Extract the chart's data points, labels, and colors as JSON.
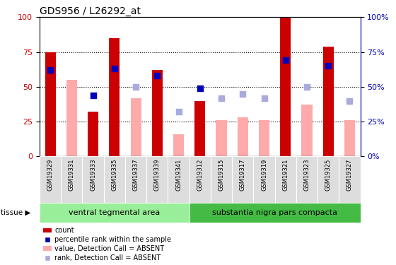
{
  "title": "GDS956 / L26292_at",
  "samples": [
    "GSM19329",
    "GSM19331",
    "GSM19333",
    "GSM19335",
    "GSM19337",
    "GSM19339",
    "GSM19341",
    "GSM19312",
    "GSM19315",
    "GSM19317",
    "GSM19319",
    "GSM19321",
    "GSM19323",
    "GSM19325",
    "GSM19327"
  ],
  "group1_count": 7,
  "group2_count": 8,
  "tissue_labels": [
    "ventral tegmental area",
    "substantia nigra pars compacta"
  ],
  "tissue_label": "tissue",
  "red_bars": [
    75,
    0,
    32,
    85,
    0,
    62,
    0,
    40,
    0,
    0,
    0,
    100,
    0,
    79,
    0
  ],
  "pink_bars": [
    0,
    55,
    0,
    0,
    42,
    0,
    16,
    0,
    26,
    28,
    26,
    0,
    37,
    0,
    26
  ],
  "blue_dots": [
    62,
    0,
    44,
    63,
    0,
    58,
    0,
    49,
    0,
    0,
    0,
    69,
    0,
    65,
    0
  ],
  "lavender_dots": [
    0,
    0,
    0,
    0,
    50,
    0,
    32,
    0,
    42,
    45,
    42,
    0,
    50,
    0,
    40
  ],
  "red_color": "#cc0000",
  "pink_color": "#ffaaaa",
  "blue_color": "#0000bb",
  "lavender_color": "#aaaadd",
  "green_light": "#99ee99",
  "green_dark": "#44bb44",
  "bar_width": 0.5,
  "ylim": [
    0,
    100
  ],
  "yticks": [
    0,
    25,
    50,
    75,
    100
  ],
  "legend_items": [
    "count",
    "percentile rank within the sample",
    "value, Detection Call = ABSENT",
    "rank, Detection Call = ABSENT"
  ],
  "legend_colors": [
    "#cc0000",
    "#0000bb",
    "#ffaaaa",
    "#aaaadd"
  ],
  "dot_size": 35
}
